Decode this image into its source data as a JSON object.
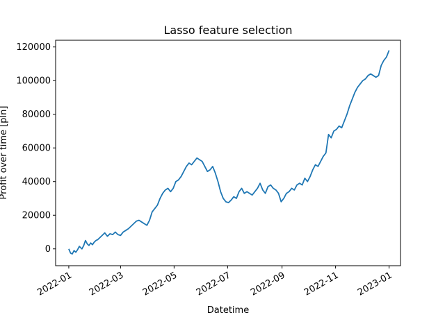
{
  "chart_data": {
    "type": "line",
    "title": "Lasso feature selection",
    "xlabel": "Datetime",
    "ylabel": "Profit over time [pln]",
    "x_type": "date",
    "xlim": [
      "2021-12-17",
      "2023-01-14"
    ],
    "ylim": [
      -10000,
      124000
    ],
    "xticks": [
      "2022-01",
      "2022-03",
      "2022-05",
      "2022-07",
      "2022-09",
      "2022-11",
      "2023-01"
    ],
    "xtick_dates": [
      "2022-01-01",
      "2022-03-01",
      "2022-05-01",
      "2022-07-01",
      "2022-09-01",
      "2022-11-01",
      "2023-01-01"
    ],
    "yticks": [
      0,
      20000,
      40000,
      60000,
      80000,
      100000,
      120000
    ],
    "ytick_labels": [
      "0",
      "20000",
      "40000",
      "60000",
      "80000",
      "100000",
      "120000"
    ],
    "grid": false,
    "line_color": "#1f77b4",
    "series": [
      {
        "x": [
          "2022-01-01",
          "2022-01-03",
          "2022-01-05",
          "2022-01-07",
          "2022-01-09",
          "2022-01-11",
          "2022-01-13",
          "2022-01-16",
          "2022-01-18",
          "2022-01-20",
          "2022-01-22",
          "2022-01-24",
          "2022-01-26",
          "2022-01-28",
          "2022-01-30",
          "2022-02-01",
          "2022-02-03",
          "2022-02-05",
          "2022-02-08",
          "2022-02-11",
          "2022-02-14",
          "2022-02-17",
          "2022-02-20",
          "2022-02-23",
          "2022-02-26",
          "2022-03-01",
          "2022-03-04",
          "2022-03-07",
          "2022-03-10",
          "2022-03-13",
          "2022-03-16",
          "2022-03-19",
          "2022-03-22",
          "2022-03-25",
          "2022-03-28",
          "2022-03-31",
          "2022-04-03",
          "2022-04-06",
          "2022-04-09",
          "2022-04-12",
          "2022-04-15",
          "2022-04-18",
          "2022-04-21",
          "2022-04-24",
          "2022-04-27",
          "2022-04-30",
          "2022-05-03",
          "2022-05-06",
          "2022-05-09",
          "2022-05-12",
          "2022-05-15",
          "2022-05-18",
          "2022-05-21",
          "2022-05-24",
          "2022-05-27",
          "2022-05-30",
          "2022-06-02",
          "2022-06-05",
          "2022-06-08",
          "2022-06-11",
          "2022-06-14",
          "2022-06-17",
          "2022-06-20",
          "2022-06-23",
          "2022-06-26",
          "2022-06-29",
          "2022-07-02",
          "2022-07-05",
          "2022-07-08",
          "2022-07-11",
          "2022-07-14",
          "2022-07-17",
          "2022-07-20",
          "2022-07-23",
          "2022-07-26",
          "2022-07-29",
          "2022-08-01",
          "2022-08-04",
          "2022-08-07",
          "2022-08-10",
          "2022-08-13",
          "2022-08-16",
          "2022-08-19",
          "2022-08-22",
          "2022-08-25",
          "2022-08-28",
          "2022-08-31",
          "2022-09-03",
          "2022-09-06",
          "2022-09-09",
          "2022-09-12",
          "2022-09-15",
          "2022-09-18",
          "2022-09-21",
          "2022-09-24",
          "2022-09-27",
          "2022-09-30",
          "2022-10-03",
          "2022-10-06",
          "2022-10-09",
          "2022-10-12",
          "2022-10-15",
          "2022-10-18",
          "2022-10-21",
          "2022-10-24",
          "2022-10-27",
          "2022-10-30",
          "2022-11-02",
          "2022-11-05",
          "2022-11-08",
          "2022-11-11",
          "2022-11-14",
          "2022-11-17",
          "2022-11-20",
          "2022-11-23",
          "2022-11-26",
          "2022-11-29",
          "2022-12-02",
          "2022-12-05",
          "2022-12-08",
          "2022-12-11",
          "2022-12-14",
          "2022-12-17",
          "2022-12-20",
          "2022-12-23",
          "2022-12-26",
          "2022-12-29",
          "2023-01-01"
        ],
        "y": [
          0,
          -2500,
          -3000,
          -1000,
          -2000,
          -500,
          1500,
          0,
          2000,
          5000,
          3000,
          2000,
          3500,
          2500,
          4000,
          5000,
          5500,
          6500,
          8000,
          9500,
          7500,
          9000,
          8500,
          10000,
          8500,
          8000,
          10000,
          11000,
          12000,
          13500,
          15000,
          16500,
          17000,
          16000,
          15000,
          14000,
          17000,
          22000,
          24000,
          26000,
          30000,
          33000,
          35000,
          36000,
          34000,
          36000,
          40000,
          41000,
          43000,
          46000,
          49000,
          51000,
          50000,
          52000,
          54000,
          53000,
          52000,
          49000,
          46000,
          47000,
          49000,
          45000,
          40000,
          34000,
          30000,
          28000,
          27500,
          29000,
          31000,
          30000,
          34000,
          36000,
          33000,
          34000,
          33000,
          32000,
          34000,
          36000,
          39000,
          35000,
          33000,
          37000,
          38000,
          36000,
          35000,
          33000,
          28000,
          30000,
          33000,
          34000,
          36000,
          35000,
          38000,
          39000,
          38000,
          42000,
          40000,
          43000,
          47000,
          50000,
          49000,
          52000,
          55000,
          57000,
          68000,
          66000,
          70000,
          71000,
          73000,
          72000,
          76000,
          80000,
          85000,
          89000,
          93000,
          96000,
          98000,
          100000,
          101000,
          103000,
          104000,
          103000,
          102000,
          103000,
          109000,
          112000,
          114000,
          118000
        ]
      }
    ]
  }
}
